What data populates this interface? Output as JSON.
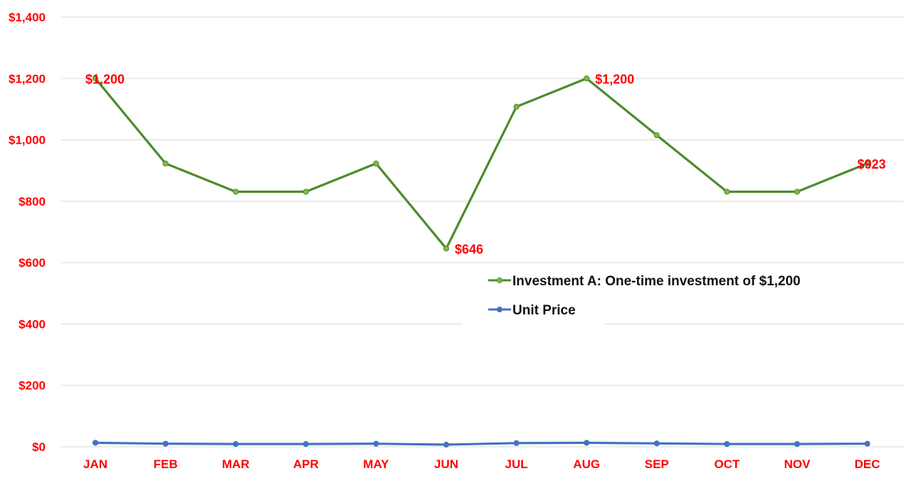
{
  "chart_data": {
    "type": "line",
    "categories": [
      "JAN",
      "FEB",
      "MAR",
      "APR",
      "MAY",
      "JUN",
      "JUL",
      "AUG",
      "SEP",
      "OCT",
      "NOV",
      "DEC"
    ],
    "ylim": [
      0,
      1400
    ],
    "yticks": [
      "$0",
      "$200",
      "$400",
      "$600",
      "$800",
      "$1,000",
      "$1,200",
      "$1,400"
    ],
    "grid": true,
    "legend_position": "center-right",
    "series": [
      {
        "name": "Investment A: One-time investment of $1,200",
        "color": "#4e8a2e",
        "marker_color": "#7dbb3f",
        "values": [
          1200,
          923,
          831,
          831,
          923,
          646,
          1108,
          1200,
          1015,
          831,
          831,
          923
        ],
        "data_labels": [
          {
            "index": 0,
            "text": "$1,200"
          },
          {
            "index": 5,
            "text": "$646"
          },
          {
            "index": 7,
            "text": "$1,200"
          },
          {
            "index": 11,
            "text": "$923"
          }
        ]
      },
      {
        "name": "Unit Price",
        "color": "#4472c4",
        "marker_color": "#4472c4",
        "values": [
          13,
          10,
          9,
          9,
          10,
          7,
          12,
          13,
          11,
          9,
          9,
          10
        ]
      }
    ],
    "colors": {
      "tick_labels": "#ff0000",
      "data_labels": "#ff0000",
      "grid": "#d9d9d9"
    }
  }
}
